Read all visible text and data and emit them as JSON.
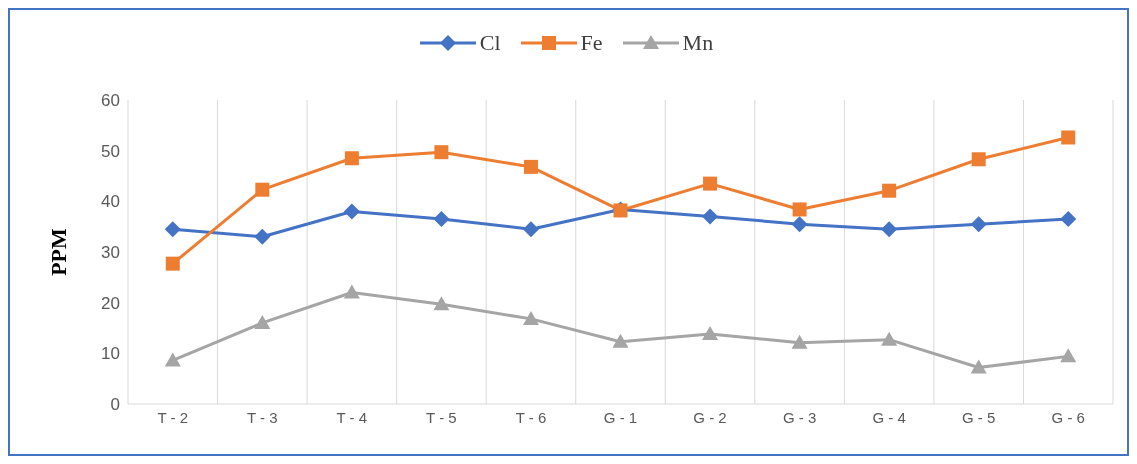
{
  "chart_data": {
    "type": "line",
    "ylabel": "PPM",
    "categories": [
      "T - 2",
      "T - 3",
      "T - 4",
      "T - 5",
      "T - 6",
      "G - 1",
      "G - 2",
      "G - 3",
      "G - 4",
      "G - 5",
      "G - 6"
    ],
    "series": [
      {
        "name": "Cl",
        "color": "#4472c4",
        "marker": "diamond",
        "values": [
          34.5,
          33,
          38,
          36.5,
          34.5,
          38.4,
          37,
          35.5,
          34.5,
          35.5,
          36.5
        ]
      },
      {
        "name": "Fe",
        "color": "#ed7d31",
        "marker": "square",
        "values": [
          27.7,
          42.3,
          48.5,
          49.7,
          46.8,
          38.2,
          43.5,
          38.4,
          42.1,
          48.3,
          52.6
        ]
      },
      {
        "name": "Mn",
        "color": "#a5a5a5",
        "marker": "triangle",
        "values": [
          8.6,
          16,
          22,
          19.7,
          16.8,
          12.3,
          13.8,
          12.1,
          12.7,
          7.2,
          9.4
        ]
      }
    ],
    "ylim": [
      0,
      60
    ],
    "yticks": [
      0,
      10,
      20,
      30,
      40,
      50,
      60
    ],
    "grid": "x",
    "legend": "top",
    "line_style": "solid"
  }
}
